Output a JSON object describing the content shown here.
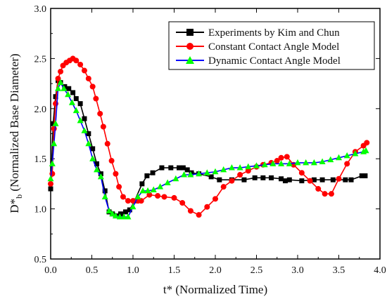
{
  "chart_data": {
    "type": "line",
    "title": "",
    "xlabel": "t* (Normalized Time)",
    "ylabel_main": "D*",
    "ylabel_sub": "b",
    "ylabel_rest": " (Normalized Base Diameter)",
    "xlim": [
      0.0,
      4.0
    ],
    "ylim": [
      0.5,
      3.0
    ],
    "xticks": [
      "0.0",
      "0.5",
      "1.0",
      "1.5",
      "2.0",
      "2.5",
      "3.0",
      "3.5",
      "4.0"
    ],
    "yticks": [
      "0.5",
      "1.0",
      "1.5",
      "2.0",
      "2.5",
      "3.0"
    ],
    "grid": false,
    "legend_position": "top-right",
    "series": [
      {
        "name": "Experiments by Kim and Chun",
        "color": "#000000",
        "marker": "square",
        "x": [
          0.0,
          0.03,
          0.06,
          0.09,
          0.12,
          0.17,
          0.22,
          0.27,
          0.31,
          0.36,
          0.41,
          0.46,
          0.51,
          0.56,
          0.61,
          0.66,
          0.71,
          0.75,
          0.79,
          0.85,
          0.91,
          0.96,
          1.02,
          1.11,
          1.17,
          1.24,
          1.35,
          1.46,
          1.56,
          1.61,
          1.66,
          1.71,
          1.8,
          1.95,
          2.05,
          2.2,
          2.35,
          2.48,
          2.58,
          2.68,
          2.8,
          2.85,
          2.9,
          3.05,
          3.2,
          3.3,
          3.43,
          3.58,
          3.65,
          3.78,
          3.82
        ],
        "values": [
          1.2,
          1.85,
          2.12,
          2.28,
          2.26,
          2.22,
          2.2,
          2.16,
          2.1,
          2.05,
          1.9,
          1.75,
          1.6,
          1.45,
          1.35,
          1.18,
          0.97,
          0.95,
          0.93,
          0.95,
          0.97,
          0.99,
          1.08,
          1.25,
          1.33,
          1.36,
          1.41,
          1.41,
          1.41,
          1.41,
          1.39,
          1.36,
          1.35,
          1.32,
          1.29,
          1.29,
          1.29,
          1.31,
          1.31,
          1.31,
          1.3,
          1.28,
          1.29,
          1.28,
          1.29,
          1.29,
          1.29,
          1.29,
          1.29,
          1.33,
          1.33
        ]
      },
      {
        "name": "Constant Contact Angle Model",
        "color": "#ff0000",
        "marker": "circle",
        "x": [
          0.0,
          0.02,
          0.04,
          0.06,
          0.09,
          0.12,
          0.15,
          0.19,
          0.23,
          0.27,
          0.31,
          0.36,
          0.41,
          0.46,
          0.51,
          0.55,
          0.6,
          0.64,
          0.69,
          0.74,
          0.79,
          0.83,
          0.88,
          0.94,
          1.0,
          1.06,
          1.1,
          1.2,
          1.3,
          1.38,
          1.5,
          1.6,
          1.7,
          1.8,
          1.9,
          2.0,
          2.1,
          2.2,
          2.3,
          2.4,
          2.5,
          2.58,
          2.68,
          2.75,
          2.8,
          2.87,
          2.95,
          3.05,
          3.15,
          3.25,
          3.33,
          3.41,
          3.5,
          3.6,
          3.7,
          3.8,
          3.84
        ],
        "values": [
          1.25,
          1.35,
          1.8,
          2.05,
          2.3,
          2.37,
          2.43,
          2.46,
          2.48,
          2.5,
          2.48,
          2.44,
          2.38,
          2.3,
          2.22,
          2.1,
          1.95,
          1.82,
          1.65,
          1.48,
          1.35,
          1.22,
          1.12,
          1.08,
          1.08,
          1.08,
          1.08,
          1.14,
          1.13,
          1.12,
          1.11,
          1.06,
          0.98,
          0.94,
          1.02,
          1.1,
          1.22,
          1.28,
          1.34,
          1.38,
          1.42,
          1.44,
          1.46,
          1.48,
          1.51,
          1.52,
          1.44,
          1.36,
          1.28,
          1.2,
          1.15,
          1.15,
          1.3,
          1.45,
          1.57,
          1.63,
          1.66
        ]
      },
      {
        "name": "Dynamic Contact Angle Model",
        "color": "#0000ff",
        "marker_color": "#00ff00",
        "marker": "triangle",
        "x": [
          0.0,
          0.02,
          0.04,
          0.06,
          0.09,
          0.12,
          0.16,
          0.21,
          0.26,
          0.31,
          0.36,
          0.41,
          0.46,
          0.51,
          0.56,
          0.61,
          0.66,
          0.71,
          0.75,
          0.79,
          0.84,
          0.89,
          0.94,
          1.0,
          1.06,
          1.12,
          1.18,
          1.25,
          1.33,
          1.42,
          1.52,
          1.62,
          1.7,
          1.8,
          1.9,
          2.0,
          2.1,
          2.2,
          2.3,
          2.4,
          2.5,
          2.6,
          2.7,
          2.8,
          2.9,
          3.0,
          3.1,
          3.2,
          3.3,
          3.4,
          3.5,
          3.6,
          3.7,
          3.8,
          3.83
        ],
        "values": [
          1.3,
          1.45,
          1.65,
          1.85,
          2.2,
          2.26,
          2.2,
          2.14,
          2.06,
          1.98,
          1.88,
          1.78,
          1.65,
          1.5,
          1.39,
          1.32,
          1.12,
          0.98,
          0.95,
          0.93,
          0.92,
          0.92,
          0.92,
          1.02,
          1.12,
          1.18,
          1.18,
          1.19,
          1.22,
          1.26,
          1.3,
          1.34,
          1.34,
          1.35,
          1.36,
          1.37,
          1.39,
          1.41,
          1.41,
          1.42,
          1.43,
          1.44,
          1.45,
          1.45,
          1.45,
          1.46,
          1.46,
          1.46,
          1.47,
          1.49,
          1.51,
          1.53,
          1.55,
          1.57,
          1.58
        ]
      }
    ]
  }
}
